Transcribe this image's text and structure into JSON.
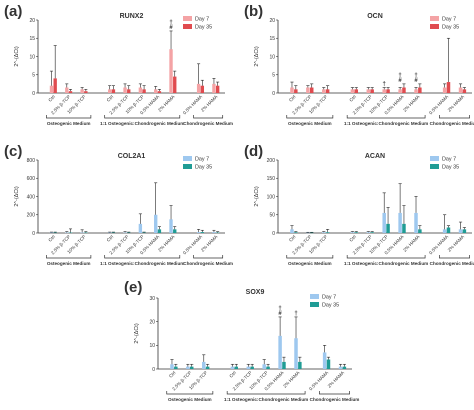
{
  "chart_data": [
    {
      "type": "bar",
      "letter": "(a)",
      "title": "RUNX2",
      "ylabel": "2^-(ΔCt)",
      "ylim": [
        0,
        20
      ],
      "yticks": [
        "0",
        "5",
        "10",
        "15",
        "20"
      ],
      "colors": [
        "#f4a3a5",
        "#e04b4f"
      ],
      "categories": [
        "Ctrl",
        "2.5% β-TCP",
        "10% β-TCP",
        "Ctrl",
        "2.5% β-TCP",
        "10% β-TCP",
        "0.5% HAMA",
        "2% HAMA",
        "0.5% HAMA",
        "2% HAMA"
      ],
      "groups": [
        {
          "label": "Osteogenic Medium",
          "range": [
            0,
            2
          ]
        },
        {
          "label": "1:1 Osteogenic:Chondrogenic Medium",
          "range": [
            3,
            7
          ]
        },
        {
          "label": "Chondrogenic Medium",
          "range": [
            8,
            9
          ]
        }
      ],
      "series": [
        {
          "name": "Day 7",
          "values": [
            2.0,
            1.5,
            1.0,
            1.0,
            1.5,
            1.5,
            1.0,
            12.0,
            2.5,
            2.5
          ],
          "errors": [
            4.0,
            1.0,
            0.5,
            1.0,
            1.0,
            1.0,
            0.8,
            5.0,
            5.5,
            1.5
          ]
        },
        {
          "name": "Day 35",
          "values": [
            4.0,
            0.5,
            0.5,
            1.0,
            1.0,
            1.0,
            0.5,
            4.5,
            2.0,
            2.0
          ],
          "errors": [
            9.0,
            0.5,
            0.5,
            1.0,
            1.0,
            1.0,
            0.5,
            1.5,
            1.5,
            1.0
          ]
        }
      ],
      "annotations": [
        {
          "text": "†\n#",
          "category_index": 7
        }
      ]
    },
    {
      "type": "bar",
      "letter": "(b)",
      "title": "OCN",
      "ylabel": "2^-(ΔCt)",
      "ylim": [
        0,
        20
      ],
      "yticks": [
        "0",
        "5",
        "10",
        "15",
        "20"
      ],
      "colors": [
        "#f4a3a5",
        "#e04b4f"
      ],
      "categories": [
        "Ctrl",
        "2.5% β-TCP",
        "10% β-TCP",
        "Ctrl",
        "2.5% β-TCP",
        "10% β-TCP",
        "0.5% HAMA",
        "2% HAMA",
        "0.5% HAMA",
        "2% HAMA"
      ],
      "groups": [
        {
          "label": "Osteogenic Medium",
          "range": [
            0,
            2
          ]
        },
        {
          "label": "1:1 Osteogenic:Chondrogenic Medium",
          "range": [
            3,
            7
          ]
        },
        {
          "label": "Chondrogenic Medium",
          "range": [
            8,
            9
          ]
        }
      ],
      "series": [
        {
          "name": "Day 7",
          "values": [
            1.5,
            1.5,
            1.0,
            1.0,
            1.0,
            1.0,
            1.0,
            1.0,
            1.5,
            1.5
          ],
          "errors": [
            1.5,
            0.5,
            0.5,
            0.5,
            0.5,
            0.5,
            0.5,
            0.5,
            1.0,
            1.0
          ]
        },
        {
          "name": "Day 35",
          "values": [
            1.0,
            1.5,
            1.0,
            1.0,
            1.0,
            1.0,
            1.5,
            1.5,
            3.0,
            1.0
          ],
          "errors": [
            1.0,
            1.0,
            1.0,
            0.5,
            0.5,
            0.5,
            1.0,
            1.0,
            12.0,
            0.5
          ]
        }
      ],
      "annotations": [
        {
          "text": "†",
          "category_index": 5
        },
        {
          "text": "†\n#",
          "category_index": 6
        },
        {
          "text": "†\n#",
          "category_index": 7
        }
      ]
    },
    {
      "type": "bar",
      "letter": "(c)",
      "title": "COL2A1",
      "ylabel": "2^-(ΔCt)",
      "ylim": [
        0,
        800
      ],
      "yticks": [
        "0",
        "200",
        "400",
        "600",
        "800"
      ],
      "colors": [
        "#9ec8ef",
        "#1f9c95"
      ],
      "categories": [
        "Ctrl",
        "2.5% β-TCP",
        "10% β-TCP",
        "Ctrl",
        "2.5% β-TCP",
        "10% β-TCP",
        "0.5% HAMA",
        "2% HAMA",
        "0.5% HAMA",
        "2% HAMA"
      ],
      "groups": [
        {
          "label": "Osteogenic Medium",
          "range": [
            0,
            2
          ]
        },
        {
          "label": "1:1 Osteogenic:Chondrogenic Medium",
          "range": [
            3,
            7
          ]
        },
        {
          "label": "Chondrogenic Medium",
          "range": [
            8,
            9
          ]
        }
      ],
      "series": [
        {
          "name": "Day 7",
          "values": [
            5,
            5,
            5,
            5,
            5,
            100,
            200,
            150,
            10,
            10
          ],
          "errors": [
            5,
            10,
            30,
            5,
            10,
            110,
            350,
            150,
            30,
            20
          ]
        },
        {
          "name": "Day 35",
          "values": [
            5,
            5,
            5,
            5,
            5,
            5,
            40,
            40,
            10,
            5
          ],
          "errors": [
            5,
            40,
            10,
            5,
            5,
            5,
            30,
            30,
            20,
            10
          ]
        }
      ],
      "annotations": []
    },
    {
      "type": "bar",
      "letter": "(d)",
      "title": "ACAN",
      "ylabel": "2^-(ΔCt)",
      "ylim": [
        0,
        200
      ],
      "yticks": [
        "0",
        "50",
        "100",
        "150",
        "200"
      ],
      "colors": [
        "#9ec8ef",
        "#1f9c95"
      ],
      "categories": [
        "Ctrl",
        "2.5% β-TCP",
        "10% β-TCP",
        "Ctrl",
        "2.5% β-TCP",
        "10% β-TCP",
        "0.5% HAMA",
        "2% HAMA",
        "0.5% HAMA",
        "2% HAMA"
      ],
      "groups": [
        {
          "label": "Osteogenic Medium",
          "range": [
            0,
            2
          ]
        },
        {
          "label": "1:1 Osteogenic:Chondrogenic Medium",
          "range": [
            3,
            7
          ]
        },
        {
          "label": "Chondrogenic Medium",
          "range": [
            8,
            9
          ]
        }
      ],
      "series": [
        {
          "name": "Day 7",
          "values": [
            10,
            1,
            2,
            2,
            2,
            55,
            55,
            55,
            10,
            10
          ],
          "errors": [
            10,
            1,
            2,
            2,
            2,
            55,
            80,
            45,
            40,
            20
          ]
        },
        {
          "name": "Day 35",
          "values": [
            2,
            1,
            2,
            2,
            2,
            25,
            25,
            10,
            15,
            10
          ],
          "errors": [
            2,
            1,
            8,
            2,
            2,
            45,
            50,
            10,
            5,
            5
          ]
        }
      ],
      "annotations": []
    },
    {
      "type": "bar",
      "letter": "(e)",
      "title": "SOX9",
      "ylabel": "2^-(ΔCt)",
      "ylim": [
        0,
        30
      ],
      "yticks": [
        "0",
        "10",
        "20",
        "30"
      ],
      "colors": [
        "#9ec8ef",
        "#1f9c95"
      ],
      "categories": [
        "Ctrl",
        "2.5% β-TCP",
        "10% β-TCP",
        "Ctrl",
        "2.5% β-TCP",
        "10% β-TCP",
        "0.5% HAMA",
        "2% HAMA",
        "0.5% HAMA",
        "2% HAMA"
      ],
      "groups": [
        {
          "label": "Osteogenic Medium",
          "range": [
            0,
            2
          ]
        },
        {
          "label": "1:1 Osteogenic:Chondrogenic Medium",
          "range": [
            3,
            7
          ]
        },
        {
          "label": "Chondrogenic Medium",
          "range": [
            8,
            9
          ]
        }
      ],
      "series": [
        {
          "name": "Day 7",
          "values": [
            2,
            1,
            3,
            1,
            1,
            2,
            14,
            13,
            7,
            1
          ],
          "errors": [
            2,
            1,
            3,
            1,
            1,
            2,
            8,
            9,
            3,
            1
          ]
        },
        {
          "name": "Day 35",
          "values": [
            1,
            1,
            1,
            1,
            1,
            1,
            3,
            3,
            4,
            1
          ],
          "errors": [
            1,
            1,
            1,
            1,
            1,
            1,
            2,
            2,
            1,
            1
          ]
        }
      ],
      "annotations": [
        {
          "text": "†\n#",
          "category_index": 6
        },
        {
          "text": "†",
          "category_index": 7
        }
      ]
    }
  ]
}
